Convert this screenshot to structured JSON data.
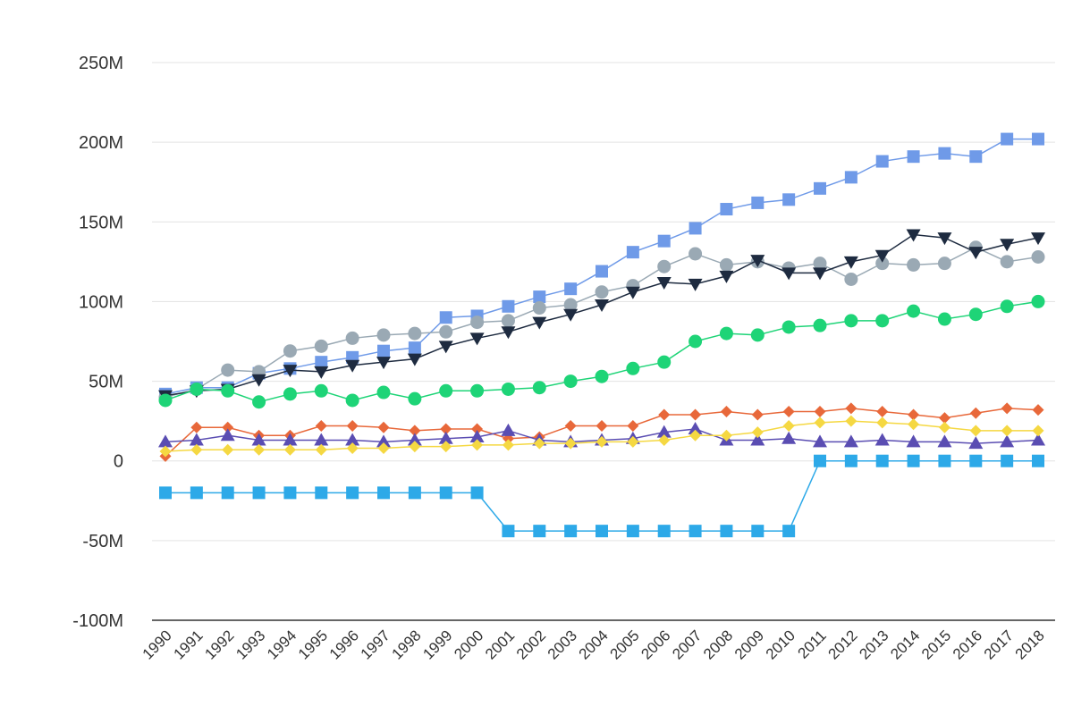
{
  "chart_data": {
    "type": "line",
    "title": "",
    "xlabel": "",
    "ylabel": "",
    "ylim": [
      -100000000,
      250000000
    ],
    "y_ticks": [
      {
        "value": 250000000,
        "label": "250M"
      },
      {
        "value": 200000000,
        "label": "200M"
      },
      {
        "value": 150000000,
        "label": "150M"
      },
      {
        "value": 100000000,
        "label": "100M"
      },
      {
        "value": 50000000,
        "label": "50M"
      },
      {
        "value": 0,
        "label": "0"
      },
      {
        "value": -50000000,
        "label": "-50M"
      },
      {
        "value": -100000000,
        "label": "-100M"
      }
    ],
    "grid": true,
    "legend": "none",
    "x": [
      "1990",
      "1991",
      "1992",
      "1993",
      "1994",
      "1995",
      "1996",
      "1997",
      "1998",
      "1999",
      "2000",
      "2001",
      "2002",
      "2003",
      "2004",
      "2005",
      "2006",
      "2007",
      "2008",
      "2009",
      "2010",
      "2011",
      "2012",
      "2013",
      "2014",
      "2015",
      "2016",
      "2017",
      "2018"
    ],
    "series": [
      {
        "color": "#6f9ae8",
        "marker": "square",
        "values": [
          42,
          46,
          46,
          55,
          58,
          62,
          65,
          69,
          71,
          90,
          91,
          97,
          103,
          108,
          119,
          131,
          138,
          146,
          158,
          162,
          164,
          171,
          178,
          188,
          191,
          193,
          191,
          202,
          202
        ]
      },
      {
        "color": "#9aa9b4",
        "marker": "circle",
        "values": [
          40,
          45,
          57,
          56,
          69,
          72,
          77,
          79,
          80,
          81,
          87,
          88,
          96,
          98,
          106,
          110,
          122,
          130,
          123,
          125,
          121,
          124,
          114,
          124,
          123,
          124,
          134,
          125,
          128
        ]
      },
      {
        "color": "#1e2b40",
        "marker": "triangle-down",
        "values": [
          41,
          44,
          45,
          51,
          57,
          56,
          60,
          62,
          64,
          72,
          77,
          81,
          87,
          92,
          98,
          106,
          112,
          111,
          116,
          126,
          118,
          118,
          125,
          129,
          142,
          140,
          131,
          136,
          140
        ]
      },
      {
        "color": "#1ed477",
        "marker": "circle",
        "values": [
          38,
          45,
          44,
          37,
          42,
          44,
          38,
          43,
          39,
          44,
          44,
          45,
          46,
          50,
          53,
          58,
          62,
          75,
          80,
          79,
          84,
          85,
          88,
          88,
          94,
          89,
          92,
          97,
          100
        ]
      },
      {
        "color": "#e8683a",
        "marker": "diamond",
        "values": [
          3,
          21,
          21,
          16,
          16,
          22,
          22,
          21,
          19,
          20,
          20,
          14,
          15,
          22,
          22,
          22,
          29,
          29,
          31,
          29,
          31,
          31,
          33,
          31,
          29,
          27,
          30,
          33,
          32
        ]
      },
      {
        "color": "#5a4db2",
        "marker": "triangle-up",
        "values": [
          12,
          13,
          16,
          13,
          13,
          13,
          13,
          12,
          13,
          14,
          15,
          19,
          13,
          12,
          13,
          14,
          18,
          20,
          13,
          13,
          14,
          12,
          12,
          13,
          12,
          12,
          11,
          12,
          13
        ]
      },
      {
        "color": "#f5d842",
        "marker": "diamond",
        "values": [
          6,
          7,
          7,
          7,
          7,
          7,
          8,
          8,
          9,
          9,
          10,
          10,
          11,
          11,
          12,
          12,
          13,
          16,
          16,
          18,
          22,
          24,
          25,
          24,
          23,
          21,
          19,
          19,
          19
        ]
      },
      {
        "color": "#2da9e8",
        "marker": "square",
        "values": [
          -20,
          -20,
          -20,
          -20,
          -20,
          -20,
          -20,
          -20,
          -20,
          -20,
          -20,
          -44,
          -44,
          -44,
          -44,
          -44,
          -44,
          -44,
          -44,
          -44,
          -44,
          0,
          0,
          0,
          0,
          0,
          0,
          0,
          0
        ]
      }
    ],
    "value_unit_multiplier": 1000000
  }
}
